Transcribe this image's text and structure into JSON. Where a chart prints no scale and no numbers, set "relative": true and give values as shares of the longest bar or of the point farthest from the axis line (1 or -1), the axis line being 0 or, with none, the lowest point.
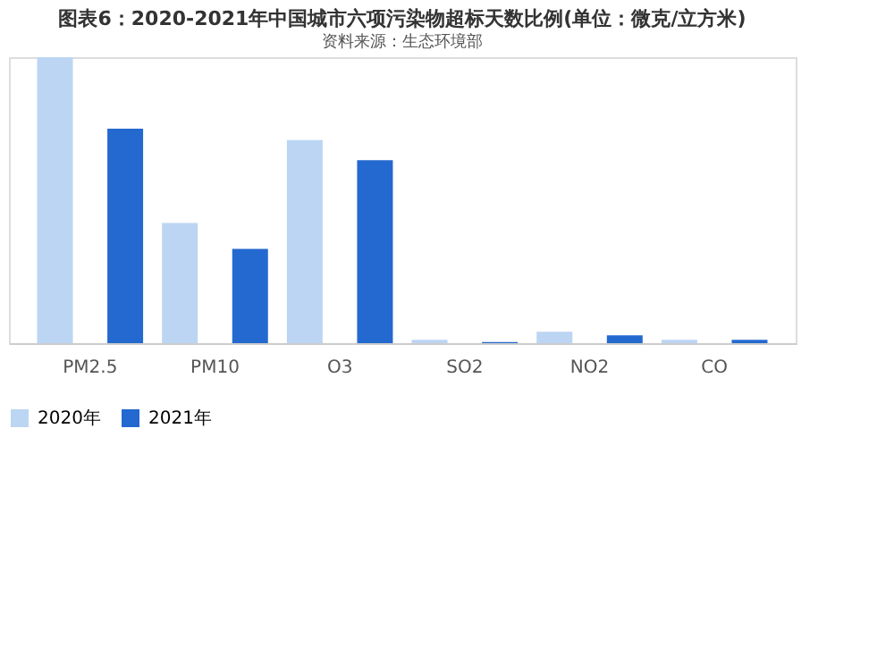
{
  "chart_data": {
    "type": "bar",
    "title": "图表6：2020-2021年中国城市六项污染物超标天数比例(单位：微克/立方米)",
    "categories": [
      "PM2.5",
      "PM10",
      "O3",
      "SO2",
      "NO2",
      "CO"
    ],
    "relative": true,
    "series": [
      {
        "name": "2020年",
        "color": "#bcd5f3",
        "values": [
          1,
          0.42,
          0.71,
          0.012,
          0.04,
          0.012
        ]
      },
      {
        "name": "2021年",
        "color": "#2469cf",
        "values": [
          0.75,
          0.33,
          0.64,
          0.004,
          0.027,
          0.012
        ]
      }
    ],
    "legend": "bottom",
    "annotations": [
      "资料来源：生态环境部"
    ]
  }
}
